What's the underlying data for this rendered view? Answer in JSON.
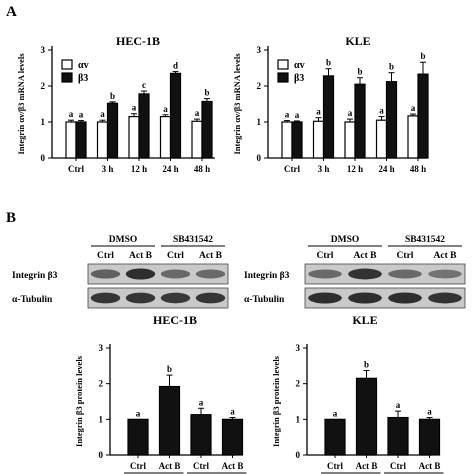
{
  "panels": {
    "a": "A",
    "b": "B"
  },
  "chart_data": [
    {
      "type": "bar",
      "title": "HEC-1B",
      "ylabel": "Integrin αv/β3 mRNA levels",
      "categories": [
        "Ctrl",
        "3 h",
        "12 h",
        "24 h",
        "48 h"
      ],
      "ylim": [
        0,
        3
      ],
      "yticks": [
        "0",
        "1",
        "2",
        "3"
      ],
      "series": [
        {
          "name": "αv",
          "color": "#ffffff",
          "values": [
            1.0,
            1.0,
            1.15,
            1.15,
            1.02
          ],
          "errors": [
            0.05,
            0.05,
            0.08,
            0.05,
            0.06
          ],
          "letters": [
            "a",
            "a",
            "a",
            "a",
            "a"
          ]
        },
        {
          "name": "β3",
          "color": "#111111",
          "values": [
            1.0,
            1.52,
            1.78,
            2.35,
            1.57
          ],
          "errors": [
            0.04,
            0.04,
            0.08,
            0.05,
            0.08
          ],
          "letters": [
            "a",
            "b",
            "c",
            "d",
            "b"
          ]
        }
      ]
    },
    {
      "type": "bar",
      "title": "KLE",
      "ylabel": "Integrin αv/β3 mRNA levels",
      "categories": [
        "Ctrl",
        "3 h",
        "12 h",
        "24 h",
        "48 h"
      ],
      "ylim": [
        0,
        3
      ],
      "yticks": [
        "0",
        "1",
        "2",
        "3"
      ],
      "series": [
        {
          "name": "αv",
          "color": "#ffffff",
          "values": [
            1.0,
            1.02,
            1.0,
            1.05,
            1.17
          ],
          "errors": [
            0.04,
            0.1,
            0.08,
            0.1,
            0.05
          ],
          "letters": [
            "a",
            "a",
            "a",
            "a",
            "a"
          ]
        },
        {
          "name": "β3",
          "color": "#111111",
          "values": [
            1.0,
            2.28,
            2.05,
            2.12,
            2.33
          ],
          "errors": [
            0.03,
            0.2,
            0.18,
            0.25,
            0.33
          ],
          "letters": [
            "a",
            "b",
            "b",
            "b",
            "b"
          ]
        }
      ]
    },
    {
      "type": "bar",
      "title": "HEC-1B",
      "ylabel": "Integrin β3 protein levels",
      "categories": [
        "Ctrl",
        "Act B",
        "Ctrl",
        "Act B"
      ],
      "groups": [
        "DMSO",
        "SB431542"
      ],
      "ylim": [
        0,
        3
      ],
      "yticks": [
        "0",
        "1",
        "2",
        "3"
      ],
      "series": [
        {
          "color": "#111111",
          "values": [
            1.0,
            1.92,
            1.13,
            1.0
          ],
          "errors": [
            0.0,
            0.32,
            0.18,
            0.05
          ],
          "letters": [
            "a",
            "b",
            "a",
            "a"
          ]
        }
      ]
    },
    {
      "type": "bar",
      "title": "KLE",
      "ylabel": "Integrin β3 protein levels",
      "categories": [
        "Ctrl",
        "Act B",
        "Ctrl",
        "Act B"
      ],
      "groups": [
        "DMSO",
        "SB431542"
      ],
      "ylim": [
        0,
        3
      ],
      "yticks": [
        "0",
        "1",
        "2",
        "3"
      ],
      "series": [
        {
          "color": "#111111",
          "values": [
            1.0,
            2.15,
            1.05,
            1.0
          ],
          "errors": [
            0.0,
            0.22,
            0.18,
            0.05
          ],
          "letters": [
            "a",
            "b",
            "a",
            "a"
          ]
        }
      ]
    }
  ],
  "blots": [
    {
      "groups": [
        "DMSO",
        "SB431542"
      ],
      "lanes": [
        "Ctrl",
        "Act B",
        "Ctrl",
        "Act B"
      ],
      "rows": [
        {
          "label": "Integrin β3",
          "intensity": [
            0.55,
            0.85,
            0.5,
            0.5
          ]
        },
        {
          "label": "α-Tubulin",
          "intensity": [
            0.8,
            0.8,
            0.78,
            0.8
          ]
        }
      ]
    },
    {
      "groups": [
        "DMSO",
        "SB431542"
      ],
      "lanes": [
        "Ctrl",
        "Act B",
        "Ctrl",
        "Act B"
      ],
      "rows": [
        {
          "label": "Integrin β3",
          "intensity": [
            0.5,
            0.82,
            0.5,
            0.45
          ]
        },
        {
          "label": "α-Tubulin",
          "intensity": [
            0.85,
            0.85,
            0.85,
            0.82
          ]
        }
      ]
    }
  ]
}
